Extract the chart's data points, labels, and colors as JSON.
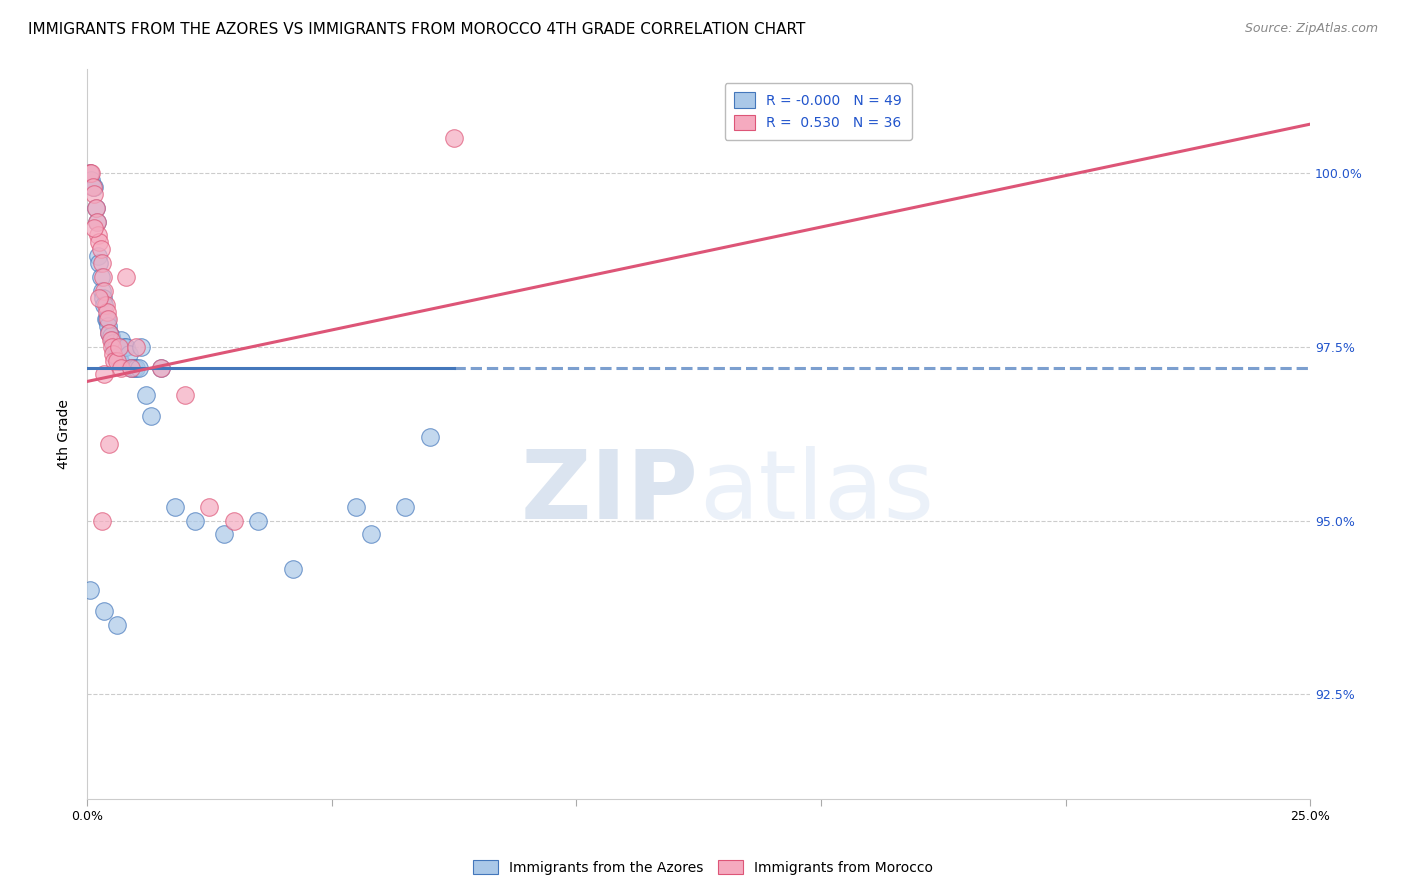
{
  "title": "IMMIGRANTS FROM THE AZORES VS IMMIGRANTS FROM MOROCCO 4TH GRADE CORRELATION CHART",
  "source": "Source: ZipAtlas.com",
  "ylabel": "4th Grade",
  "xlim": [
    0.0,
    25.0
  ],
  "ylim": [
    91.0,
    101.5
  ],
  "yticks": [
    92.5,
    95.0,
    97.5,
    100.0
  ],
  "ytick_labels": [
    "92.5%",
    "95.0%",
    "97.5%",
    "100.0%"
  ],
  "blue_R": "-0.000",
  "blue_N": 49,
  "pink_R": "0.530",
  "pink_N": 36,
  "blue_color": "#aac8e8",
  "pink_color": "#f5aabf",
  "blue_edge_color": "#4477bb",
  "pink_edge_color": "#dd5577",
  "blue_label": "Immigrants from the Azores",
  "pink_label": "Immigrants from Morocco",
  "watermark_zip": "ZIP",
  "watermark_atlas": "atlas",
  "blue_trend_x1": 0.0,
  "blue_trend_y1": 97.2,
  "blue_trend_x2": 25.0,
  "blue_trend_y2": 97.2,
  "blue_solid_end": 7.5,
  "pink_trend_x1": 0.0,
  "pink_trend_y1": 97.0,
  "pink_trend_x2": 25.0,
  "pink_trend_y2": 100.7,
  "grid_color": "#cccccc",
  "background_color": "white",
  "title_fontsize": 11,
  "source_fontsize": 9,
  "axis_label_fontsize": 10,
  "tick_fontsize": 9,
  "legend_fontsize": 10,
  "blue_scatter_x": [
    0.05,
    0.08,
    0.12,
    0.15,
    0.18,
    0.2,
    0.22,
    0.25,
    0.28,
    0.3,
    0.32,
    0.35,
    0.38,
    0.4,
    0.42,
    0.45,
    0.48,
    0.5,
    0.52,
    0.55,
    0.58,
    0.6,
    0.62,
    0.65,
    0.68,
    0.7,
    0.75,
    0.8,
    0.85,
    0.9,
    0.95,
    1.0,
    1.05,
    1.1,
    1.2,
    1.3,
    1.5,
    1.8,
    2.2,
    2.8,
    3.5,
    4.2,
    5.5,
    5.8,
    6.5,
    7.0,
    0.05,
    0.35,
    0.6
  ],
  "blue_scatter_y": [
    100.0,
    99.9,
    99.8,
    99.8,
    99.5,
    99.3,
    98.8,
    98.7,
    98.5,
    98.3,
    98.2,
    98.1,
    97.9,
    97.9,
    97.8,
    97.7,
    97.65,
    97.6,
    97.55,
    97.5,
    97.5,
    97.4,
    97.35,
    97.3,
    97.3,
    97.6,
    97.5,
    97.5,
    97.4,
    97.2,
    97.2,
    97.2,
    97.2,
    97.5,
    96.8,
    96.5,
    97.2,
    95.2,
    95.0,
    94.8,
    95.0,
    94.3,
    95.2,
    94.8,
    95.2,
    96.2,
    94.0,
    93.7,
    93.5
  ],
  "pink_scatter_x": [
    0.05,
    0.08,
    0.12,
    0.15,
    0.18,
    0.2,
    0.22,
    0.25,
    0.28,
    0.3,
    0.32,
    0.35,
    0.38,
    0.4,
    0.42,
    0.45,
    0.48,
    0.5,
    0.52,
    0.55,
    0.6,
    0.65,
    0.7,
    0.8,
    0.9,
    1.0,
    1.5,
    2.0,
    2.5,
    3.0,
    0.15,
    0.25,
    0.35,
    0.45,
    0.3,
    7.5
  ],
  "pink_scatter_y": [
    100.0,
    100.0,
    99.8,
    99.7,
    99.5,
    99.3,
    99.1,
    99.0,
    98.9,
    98.7,
    98.5,
    98.3,
    98.1,
    98.0,
    97.9,
    97.7,
    97.6,
    97.5,
    97.4,
    97.3,
    97.3,
    97.5,
    97.2,
    98.5,
    97.2,
    97.5,
    97.2,
    96.8,
    95.2,
    95.0,
    99.2,
    98.2,
    97.1,
    96.1,
    95.0,
    100.5
  ]
}
